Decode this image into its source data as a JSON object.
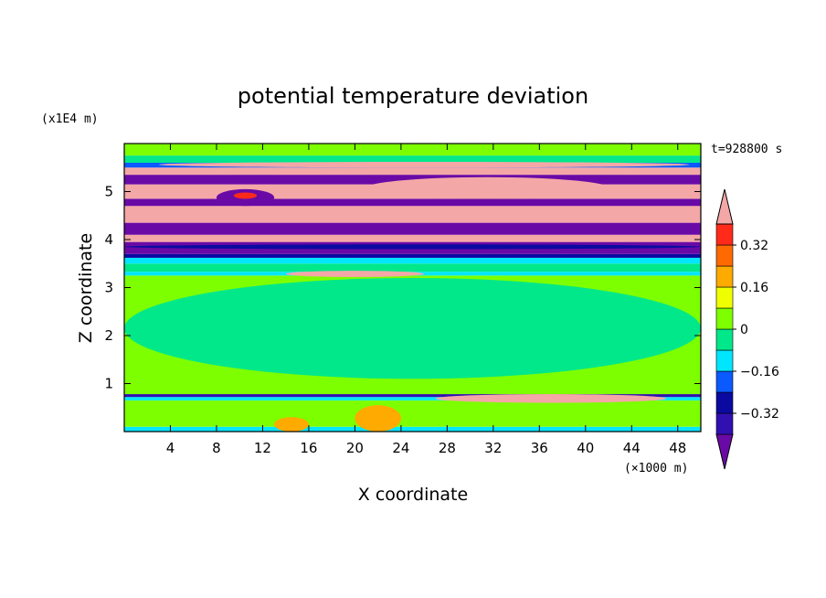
{
  "chart_data": {
    "type": "heatmap",
    "title": "potential temperature deviation",
    "xlabel": "X coordinate",
    "ylabel": "Z coordinate",
    "x_unit": "(×1000 m)",
    "y_unit": "(x1E4 m)",
    "time_label": "t=928800 s",
    "xlim": [
      0,
      50
    ],
    "ylim": [
      0,
      6
    ],
    "x_ticks": [
      4,
      8,
      12,
      16,
      20,
      24,
      28,
      32,
      36,
      40,
      44,
      48
    ],
    "y_ticks": [
      1,
      2,
      3,
      4,
      5
    ],
    "colorbar": {
      "levels": [
        {
          "value": -0.4,
          "color": "#6a0aa6"
        },
        {
          "value": -0.32,
          "color": "#3010b0"
        },
        {
          "value": -0.24,
          "color": "#0a0aa0"
        },
        {
          "value": -0.16,
          "color": "#0a5aff"
        },
        {
          "value": -0.08,
          "color": "#00e6ff"
        },
        {
          "value": 0,
          "color": "#00e88a"
        },
        {
          "value": 0.08,
          "color": "#7dff00"
        },
        {
          "value": 0.16,
          "color": "#f0ff00"
        },
        {
          "value": 0.24,
          "color": "#ffaa00"
        },
        {
          "value": 0.32,
          "color": "#ff6a00"
        },
        {
          "value": 0.4,
          "color": "#ff2a1a"
        },
        {
          "value": 0.48,
          "color": "#f4a7a7"
        }
      ],
      "tick_labels": [
        "0.32",
        "0.16",
        "0",
        "−0.16",
        "−0.32"
      ]
    },
    "bands": [
      {
        "z": [
          0,
          0.1
        ],
        "color": "#00e6ff"
      },
      {
        "z": [
          0.1,
          0.65
        ],
        "color": "#7dff00"
      },
      {
        "z": [
          0.65,
          0.72
        ],
        "color": "#00e6ff"
      },
      {
        "z": [
          0.72,
          0.78
        ],
        "color": "#3010b0"
      },
      {
        "z": [
          0.78,
          3.25
        ],
        "color": "#7dff00"
      },
      {
        "z": [
          3.25,
          3.33
        ],
        "color": "#00e6ff"
      },
      {
        "z": [
          3.33,
          3.5
        ],
        "color": "#00e88a"
      },
      {
        "z": [
          3.5,
          3.62
        ],
        "color": "#00e6ff"
      },
      {
        "z": [
          3.62,
          3.7
        ],
        "color": "#0a0aa0"
      },
      {
        "z": [
          3.7,
          3.95
        ],
        "color": "#6a0aa6"
      },
      {
        "z": [
          3.95,
          4.1
        ],
        "color": "#f4a7a7"
      },
      {
        "z": [
          4.1,
          4.35
        ],
        "color": "#6a0aa6"
      },
      {
        "z": [
          4.35,
          4.7
        ],
        "color": "#f4a7a7"
      },
      {
        "z": [
          4.7,
          4.85
        ],
        "color": "#6a0aa6"
      },
      {
        "z": [
          4.85,
          5.15
        ],
        "color": "#f4a7a7"
      },
      {
        "z": [
          5.15,
          5.35
        ],
        "color": "#6a0aa6"
      },
      {
        "z": [
          5.35,
          5.5
        ],
        "color": "#f4a7a7"
      },
      {
        "z": [
          5.5,
          5.6
        ],
        "color": "#0a5aff"
      },
      {
        "z": [
          5.6,
          5.75
        ],
        "color": "#00e88a"
      },
      {
        "z": [
          5.75,
          6
        ],
        "color": "#7dff00"
      }
    ],
    "patches": [
      {
        "x": [
          0,
          50
        ],
        "z": [
          1.1,
          3.2
        ],
        "color": "#00e88a"
      },
      {
        "x": [
          20,
          24
        ],
        "z": [
          0,
          0.55
        ],
        "color": "#ffaa00"
      },
      {
        "x": [
          13,
          16
        ],
        "z": [
          0,
          0.3
        ],
        "color": "#ffaa00"
      },
      {
        "x": [
          8,
          13
        ],
        "z": [
          4.7,
          5.05
        ],
        "color": "#6a0aa6"
      },
      {
        "x": [
          9.5,
          11.5
        ],
        "z": [
          4.85,
          4.98
        ],
        "color": "#ff2a1a"
      },
      {
        "x": [
          27,
          47
        ],
        "z": [
          0.6,
          0.78
        ],
        "color": "#f4a7a7"
      },
      {
        "x": [
          14,
          26
        ],
        "z": [
          3.22,
          3.35
        ],
        "color": "#f4a7a7"
      },
      {
        "x": [
          21,
          42
        ],
        "z": [
          4.85,
          5.3
        ],
        "color": "#f4a7a7"
      },
      {
        "x": [
          0,
          50
        ],
        "z": [
          3.8,
          3.9
        ],
        "color": "#0a0aa0"
      },
      {
        "x": [
          3,
          49
        ],
        "z": [
          5.5,
          5.62
        ],
        "color": "#f4a7a7"
      }
    ]
  }
}
